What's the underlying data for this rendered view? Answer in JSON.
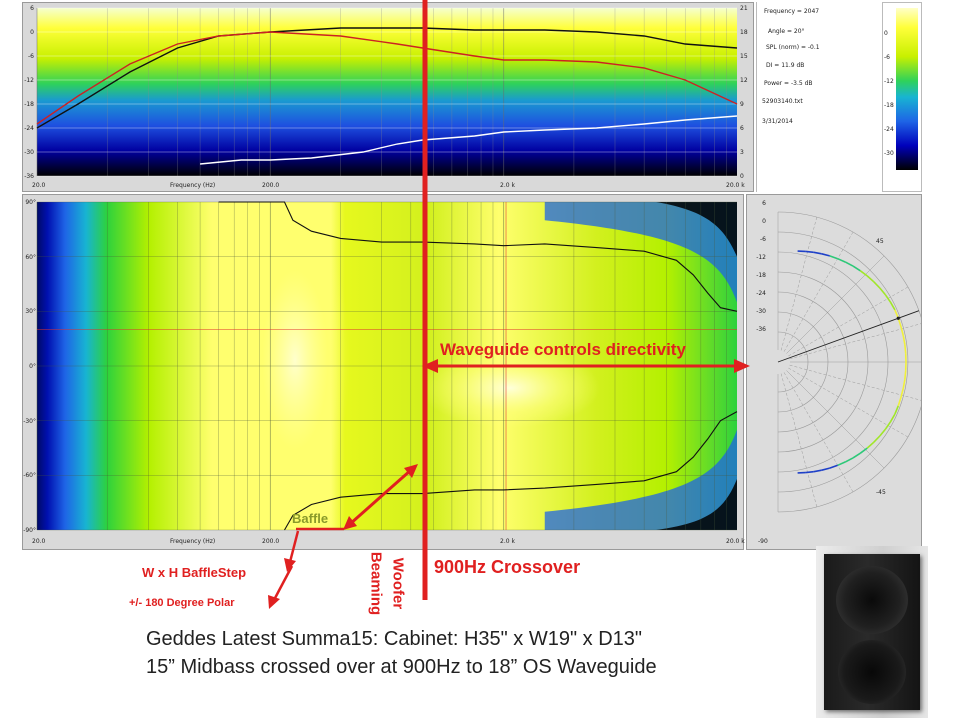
{
  "chart_data": [
    {
      "type": "line",
      "panel": "frequency-response",
      "xlabel": "Frequency (Hz)",
      "x_scale": "log",
      "xlim": [
        20,
        20000
      ],
      "x_ticks": [
        {
          "value": 20,
          "label": "20.0"
        },
        {
          "value": 200,
          "label": "200.0"
        },
        {
          "value": 2000,
          "label": "2.0 k"
        },
        {
          "value": 20000,
          "label": "20.0 k"
        }
      ],
      "ylim_left": [
        -36,
        6
      ],
      "y_ticks_left": [
        "6",
        "0",
        "-6",
        "-12",
        "-18",
        "-24",
        "-30",
        "-36"
      ],
      "ylim_right": [
        0,
        21
      ],
      "y_ticks_right": [
        "21",
        "18",
        "15",
        "12",
        "9",
        "6",
        "3",
        "0"
      ],
      "series": [
        {
          "color": "#111111",
          "x": [
            20,
            30,
            50,
            80,
            120,
            200,
            400,
            900,
            1500,
            2000,
            3000,
            5000,
            8000,
            12000,
            20000
          ],
          "y": [
            -24,
            -18,
            -10,
            -4,
            -1,
            0,
            1,
            1,
            0.5,
            0.5,
            0.5,
            0,
            -1,
            -3,
            -4
          ]
        },
        {
          "color": "#cc2222",
          "x": [
            20,
            30,
            50,
            80,
            120,
            200,
            400,
            700,
            900,
            1500,
            2000,
            3000,
            5000,
            8000,
            12000,
            20000
          ],
          "y": [
            -23,
            -16,
            -8,
            -3,
            -1,
            0,
            -1,
            -3,
            -4,
            -6,
            -7,
            -7,
            -7.5,
            -9,
            -12,
            -18
          ]
        },
        {
          "color": "#ffffff",
          "x": [
            100,
            150,
            200,
            300,
            500,
            700,
            900,
            1500,
            2000,
            3000,
            5000,
            8000,
            12000,
            20000
          ],
          "y": [
            -33,
            -32,
            -32,
            -31.5,
            -30,
            -28,
            -27,
            -26,
            -25,
            -24.5,
            -24,
            -23,
            -22,
            -21
          ]
        }
      ]
    },
    {
      "type": "heatmap",
      "panel": "directivity-map",
      "xlabel": "Frequency (Hz)",
      "x_scale": "log",
      "xlim": [
        20,
        20000
      ],
      "x_ticks": [
        {
          "value": 20,
          "label": "20.0"
        },
        {
          "value": 200,
          "label": "200.0"
        },
        {
          "value": 2000,
          "label": "2.0 k"
        },
        {
          "value": 20000,
          "label": "20.0 k"
        }
      ],
      "ylim": [
        -90,
        90
      ],
      "y_ticks": [
        "90°",
        "60°",
        "30°",
        "0°",
        "-30°",
        "-60°",
        "-90°"
      ],
      "color_scale": [
        "#000000",
        "#0000bb",
        "#1e64e6",
        "#18b4d2",
        "#2dd23c",
        "#b4f000",
        "#ffff6e",
        "#ffffc8"
      ],
      "contour_upper": {
        "x": [
          120,
          230,
          250,
          300,
          400,
          600,
          900,
          1500,
          2000,
          3000,
          5000,
          8000,
          11000,
          13000,
          15000,
          17000,
          20000
        ],
        "y": [
          90,
          90,
          80,
          74,
          70,
          68,
          68,
          67,
          66,
          67,
          65,
          63,
          58,
          50,
          40,
          32,
          30
        ]
      },
      "contour_lower": {
        "x": [
          230,
          250,
          300,
          400,
          600,
          900,
          1500,
          2000,
          3000,
          5000,
          8000,
          11000,
          13000,
          15000,
          17000,
          20000
        ],
        "y": [
          -90,
          -82,
          -76,
          -72,
          -70,
          -70,
          -68,
          -68,
          -67,
          -65,
          -63,
          -58,
          -50,
          -40,
          -30,
          -25
        ]
      }
    },
    {
      "type": "polar",
      "panel": "polar-plot",
      "r_ticks": [
        "6",
        "0",
        "-6",
        "-12",
        "-18",
        "-24",
        "-30",
        "-36"
      ],
      "angle_labels": [
        "45",
        "-45",
        "-90"
      ]
    },
    {
      "type": "colorbar",
      "panel": "colorbar",
      "ticks": [
        "0",
        "-6",
        "-12",
        "-18",
        "-24",
        "-30"
      ]
    }
  ],
  "info": {
    "frequency": "Frequency = 2047",
    "angle": "Angle = 20°",
    "spl": "SPL (norm) = -0.1",
    "di": "DI = 11.9 dB",
    "power": "Power = -3.5 dB",
    "file": "52903140.txt",
    "date": "3/31/2014"
  },
  "annotations": {
    "waveguide": "Waveguide controls directivity",
    "baffle": "Baffle",
    "baffle_step": "W x H BaffleStep",
    "polar": "+/- 180 Degree Polar",
    "woofer": "Woofer",
    "beaming": "Beaming",
    "crossover": "900Hz Crossover"
  },
  "colors": {
    "annotation_red": "#e02020",
    "baffle_olive": "#8a9a2a",
    "trace_black": "#111111",
    "trace_red": "#cc2222",
    "trace_white": "#ffffff"
  },
  "caption": {
    "line1": "Geddes Latest Summa15:  Cabinet:  H35\" x W19\" x D13\"",
    "line2": "15” Midbass crossed over at 900Hz to 18” OS Waveguide"
  }
}
